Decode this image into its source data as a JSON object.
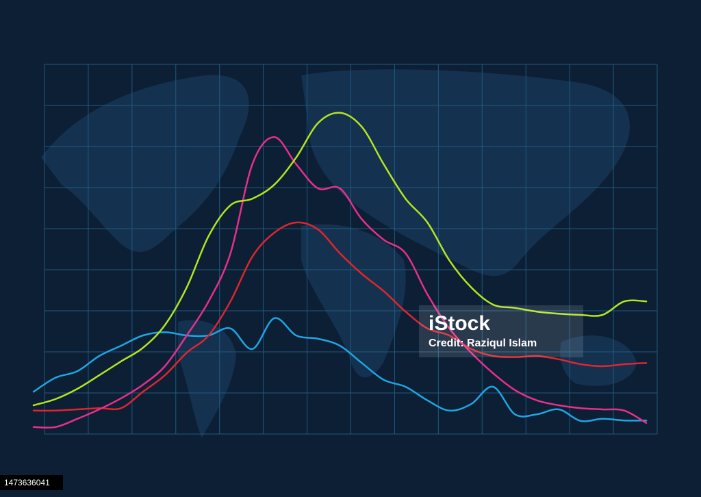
{
  "watermark": {
    "brand": "iStock",
    "credit": "Credit: Raziqul Islam"
  },
  "image_id": "1473636041",
  "chart_data": {
    "type": "line",
    "x": [
      -0.25,
      0.25,
      0.75,
      1.25,
      1.75,
      2.25,
      2.75,
      3.25,
      3.75,
      4.25,
      4.75,
      5.25,
      5.75,
      6.25,
      6.75,
      7.25,
      7.75,
      8.25,
      8.75,
      9.25,
      9.75,
      10.25,
      10.75,
      11.25,
      11.75,
      12.25,
      12.75,
      13.25,
      13.75
    ],
    "xlim": [
      0,
      14
    ],
    "ylim": [
      0,
      9
    ],
    "xticks": [
      0,
      1,
      2,
      3,
      4,
      5,
      6,
      7,
      8,
      9,
      10,
      11,
      12,
      13,
      14
    ],
    "yticks": [
      0,
      1,
      2,
      3,
      4,
      5,
      6,
      7,
      8,
      9
    ],
    "grid": true,
    "series": [
      {
        "color": "#1ea6e3",
        "values": [
          1.03,
          1.37,
          1.53,
          1.9,
          2.15,
          2.4,
          2.48,
          2.4,
          2.4,
          2.57,
          2.07,
          2.82,
          2.4,
          2.32,
          2.15,
          1.73,
          1.32,
          1.15,
          0.82,
          0.57,
          0.73,
          1.15,
          0.48,
          0.48,
          0.6,
          0.32,
          0.37,
          0.33,
          0.33
        ]
      },
      {
        "color": "#e0252f",
        "values": [
          0.57,
          0.57,
          0.6,
          0.63,
          0.63,
          1.03,
          1.43,
          1.98,
          2.4,
          3.23,
          4.32,
          4.9,
          5.15,
          4.98,
          4.4,
          3.9,
          3.48,
          2.98,
          2.57,
          2.4,
          2.07,
          1.9,
          1.87,
          1.9,
          1.82,
          1.7,
          1.65,
          1.7,
          1.73
        ]
      },
      {
        "color": "#e8308a",
        "values": [
          0.17,
          0.17,
          0.37,
          0.6,
          0.87,
          1.2,
          1.65,
          2.4,
          3.23,
          4.4,
          6.57,
          7.23,
          6.57,
          5.98,
          5.98,
          5.23,
          4.73,
          4.4,
          3.4,
          2.57,
          1.98,
          1.48,
          1.07,
          0.82,
          0.7,
          0.63,
          0.6,
          0.57,
          0.27
        ]
      },
      {
        "color": "#b4e61e",
        "values": [
          0.7,
          0.85,
          1.1,
          1.43,
          1.77,
          2.1,
          2.65,
          3.57,
          4.82,
          5.57,
          5.73,
          6.07,
          6.73,
          7.57,
          7.82,
          7.48,
          6.57,
          5.73,
          5.15,
          4.23,
          3.57,
          3.15,
          3.07,
          2.98,
          2.93,
          2.9,
          2.9,
          3.23,
          3.23
        ]
      }
    ]
  }
}
